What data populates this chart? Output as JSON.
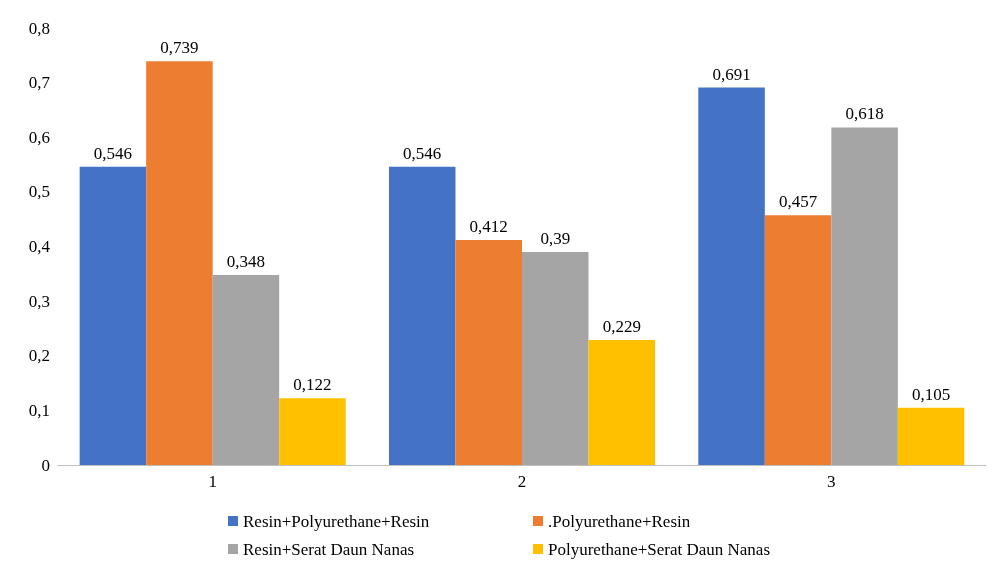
{
  "chart_data": {
    "type": "bar",
    "categories": [
      "1",
      "2",
      "3"
    ],
    "series": [
      {
        "name": "Resin+Polyurethane+Resin",
        "color": "#4472c4",
        "values": [
          0.546,
          0.546,
          0.691
        ],
        "value_labels": [
          "0,546",
          "0,546",
          "0,691"
        ]
      },
      {
        "name": ".Polyurethane+Resin",
        "color": "#ed7d31",
        "values": [
          0.739,
          0.412,
          0.457
        ],
        "value_labels": [
          "0,739",
          "0,412",
          "0,457"
        ]
      },
      {
        "name": "Resin+Serat Daun Nanas",
        "color": "#a5a5a5",
        "values": [
          0.348,
          0.39,
          0.618
        ],
        "value_labels": [
          "0,348",
          "0,39",
          "0,618"
        ]
      },
      {
        "name": "Polyurethane+Serat Daun Nanas",
        "color": "#ffc000",
        "values": [
          0.122,
          0.229,
          0.105
        ],
        "value_labels": [
          "0,122",
          "0,229",
          "0,105"
        ]
      }
    ],
    "ylim": [
      0,
      0.8
    ],
    "yticks": [
      {
        "value": 0,
        "label": "0"
      },
      {
        "value": 0.1,
        "label": "0,1"
      },
      {
        "value": 0.2,
        "label": "0,2"
      },
      {
        "value": 0.3,
        "label": "0,3"
      },
      {
        "value": 0.4,
        "label": "0,4"
      },
      {
        "value": 0.5,
        "label": "0,5"
      },
      {
        "value": 0.6,
        "label": "0,6"
      },
      {
        "value": 0.7,
        "label": "0,7"
      },
      {
        "value": 0.8,
        "label": "0,8"
      }
    ],
    "grid": false,
    "legend": "bottom"
  }
}
